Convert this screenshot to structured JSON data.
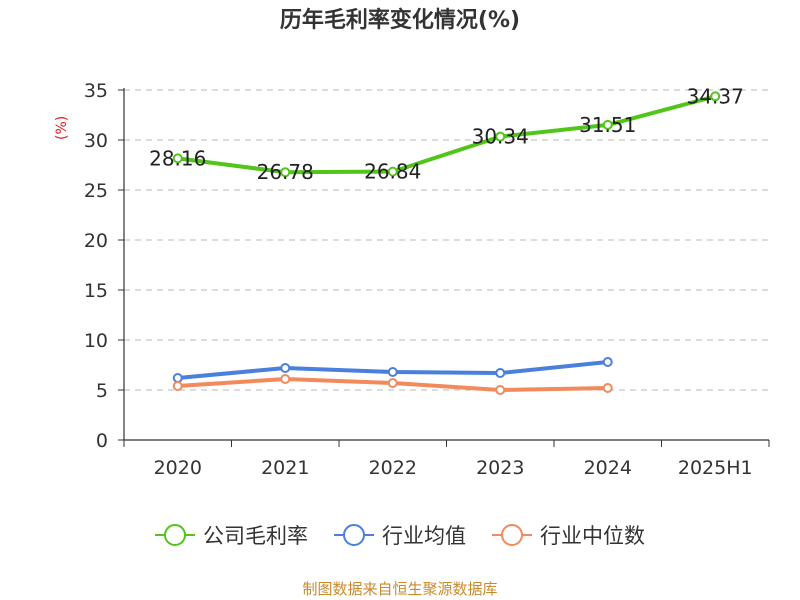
{
  "chart_data": {
    "type": "line",
    "title": "历年毛利率变化情况(%)",
    "ylabel": "(%)",
    "xlabel": "",
    "categories": [
      "2020",
      "2021",
      "2022",
      "2023",
      "2024",
      "2025H1"
    ],
    "ylim": [
      0,
      35
    ],
    "yticks": [
      0,
      5,
      10,
      15,
      20,
      25,
      30,
      35
    ],
    "grid": true,
    "legend_position": "bottom",
    "series": [
      {
        "name": "公司毛利率",
        "color": "#52c41a",
        "values": [
          28.16,
          26.78,
          26.84,
          30.34,
          31.51,
          34.37
        ],
        "data_labels": [
          "28.16",
          "26.78",
          "26.84",
          "30.34",
          "31.51",
          "34.37"
        ]
      },
      {
        "name": "行业均值",
        "color": "#4a7fdc",
        "values": [
          6.2,
          7.2,
          6.8,
          6.7,
          7.8,
          null
        ]
      },
      {
        "name": "行业中位数",
        "color": "#f28a5c",
        "values": [
          5.4,
          6.1,
          5.7,
          5.0,
          5.2,
          null
        ]
      }
    ]
  },
  "source": "制图数据来自恒生聚源数据库"
}
